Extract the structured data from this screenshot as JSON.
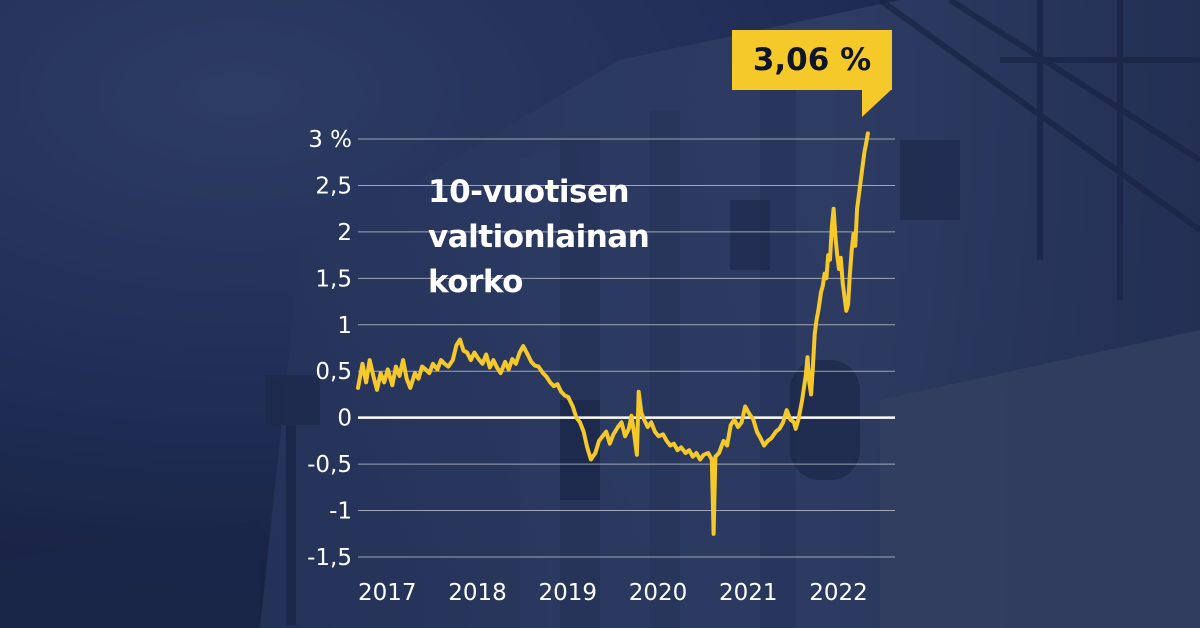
{
  "chart_data": {
    "type": "line",
    "title": "10-vuotisen valtionlainan korko",
    "title_lines": [
      "10-vuotisen",
      "valtionlainan",
      "korko"
    ],
    "annotation": "3,06 %",
    "ylim": [
      -1.5,
      3
    ],
    "y_ticks": [
      {
        "value": 3,
        "label": "3 %"
      },
      {
        "value": 2.5,
        "label": "2,5"
      },
      {
        "value": 2,
        "label": "2"
      },
      {
        "value": 1.5,
        "label": "1,5"
      },
      {
        "value": 1,
        "label": "1"
      },
      {
        "value": 0.5,
        "label": "0,5"
      },
      {
        "value": 0,
        "label": "0"
      },
      {
        "value": -0.5,
        "label": "-0,5"
      },
      {
        "value": -1,
        "label": "-1"
      },
      {
        "value": -1.5,
        "label": "-1,5"
      }
    ],
    "x_ticks": [
      {
        "value": 2017,
        "label": "2017"
      },
      {
        "value": 2018,
        "label": "2018"
      },
      {
        "value": 2019,
        "label": "2019"
      },
      {
        "value": 2020,
        "label": "2020"
      },
      {
        "value": 2021,
        "label": "2021"
      },
      {
        "value": 2022,
        "label": "2022"
      }
    ],
    "xlim": [
      2017,
      2022.95
    ],
    "grid": true,
    "colors": {
      "line": "#f6c92b",
      "grid": "#ffffff",
      "text": "#ffffff",
      "callout_bg": "#f6c92b",
      "callout_text": "#0e1526",
      "background": "#1c2a4a"
    },
    "series": [
      {
        "points": [
          [
            2017.0,
            0.32
          ],
          [
            2017.05,
            0.58
          ],
          [
            2017.09,
            0.38
          ],
          [
            2017.13,
            0.62
          ],
          [
            2017.17,
            0.45
          ],
          [
            2017.21,
            0.3
          ],
          [
            2017.25,
            0.48
          ],
          [
            2017.29,
            0.38
          ],
          [
            2017.33,
            0.52
          ],
          [
            2017.38,
            0.35
          ],
          [
            2017.42,
            0.55
          ],
          [
            2017.46,
            0.45
          ],
          [
            2017.5,
            0.62
          ],
          [
            2017.54,
            0.42
          ],
          [
            2017.58,
            0.32
          ],
          [
            2017.63,
            0.48
          ],
          [
            2017.67,
            0.42
          ],
          [
            2017.71,
            0.55
          ],
          [
            2017.75,
            0.52
          ],
          [
            2017.79,
            0.48
          ],
          [
            2017.83,
            0.58
          ],
          [
            2017.88,
            0.52
          ],
          [
            2017.92,
            0.62
          ],
          [
            2017.96,
            0.58
          ],
          [
            2018.0,
            0.55
          ],
          [
            2018.05,
            0.62
          ],
          [
            2018.09,
            0.78
          ],
          [
            2018.13,
            0.84
          ],
          [
            2018.17,
            0.72
          ],
          [
            2018.21,
            0.7
          ],
          [
            2018.25,
            0.62
          ],
          [
            2018.29,
            0.7
          ],
          [
            2018.33,
            0.64
          ],
          [
            2018.38,
            0.58
          ],
          [
            2018.42,
            0.68
          ],
          [
            2018.46,
            0.54
          ],
          [
            2018.5,
            0.62
          ],
          [
            2018.54,
            0.54
          ],
          [
            2018.58,
            0.48
          ],
          [
            2018.63,
            0.6
          ],
          [
            2018.67,
            0.52
          ],
          [
            2018.71,
            0.63
          ],
          [
            2018.75,
            0.58
          ],
          [
            2018.79,
            0.7
          ],
          [
            2018.83,
            0.77
          ],
          [
            2018.88,
            0.68
          ],
          [
            2018.92,
            0.6
          ],
          [
            2018.96,
            0.56
          ],
          [
            2019.0,
            0.55
          ],
          [
            2019.05,
            0.48
          ],
          [
            2019.09,
            0.44
          ],
          [
            2019.13,
            0.38
          ],
          [
            2019.17,
            0.34
          ],
          [
            2019.21,
            0.36
          ],
          [
            2019.25,
            0.28
          ],
          [
            2019.29,
            0.24
          ],
          [
            2019.33,
            0.22
          ],
          [
            2019.38,
            0.12
          ],
          [
            2019.42,
            0.0
          ],
          [
            2019.46,
            -0.05
          ],
          [
            2019.5,
            -0.15
          ],
          [
            2019.54,
            -0.32
          ],
          [
            2019.58,
            -0.45
          ],
          [
            2019.63,
            -0.38
          ],
          [
            2019.67,
            -0.25
          ],
          [
            2019.71,
            -0.2
          ],
          [
            2019.75,
            -0.15
          ],
          [
            2019.79,
            -0.28
          ],
          [
            2019.83,
            -0.18
          ],
          [
            2019.88,
            -0.1
          ],
          [
            2019.92,
            -0.05
          ],
          [
            2019.96,
            -0.2
          ],
          [
            2020.0,
            -0.12
          ],
          [
            2020.03,
            0.02
          ],
          [
            2020.06,
            -0.18
          ],
          [
            2020.09,
            -0.4
          ],
          [
            2020.11,
            0.28
          ],
          [
            2020.14,
            0.05
          ],
          [
            2020.17,
            -0.02
          ],
          [
            2020.21,
            -0.1
          ],
          [
            2020.25,
            -0.05
          ],
          [
            2020.29,
            -0.15
          ],
          [
            2020.33,
            -0.2
          ],
          [
            2020.38,
            -0.18
          ],
          [
            2020.42,
            -0.25
          ],
          [
            2020.46,
            -0.3
          ],
          [
            2020.5,
            -0.28
          ],
          [
            2020.54,
            -0.35
          ],
          [
            2020.58,
            -0.32
          ],
          [
            2020.63,
            -0.38
          ],
          [
            2020.67,
            -0.35
          ],
          [
            2020.71,
            -0.42
          ],
          [
            2020.75,
            -0.38
          ],
          [
            2020.79,
            -0.45
          ],
          [
            2020.83,
            -0.4
          ],
          [
            2020.88,
            -0.38
          ],
          [
            2020.92,
            -0.45
          ],
          [
            2020.94,
            -1.25
          ],
          [
            2020.96,
            -0.42
          ],
          [
            2021.0,
            -0.38
          ],
          [
            2021.05,
            -0.25
          ],
          [
            2021.09,
            -0.3
          ],
          [
            2021.13,
            -0.08
          ],
          [
            2021.17,
            -0.02
          ],
          [
            2021.21,
            -0.1
          ],
          [
            2021.25,
            -0.05
          ],
          [
            2021.29,
            0.12
          ],
          [
            2021.33,
            0.05
          ],
          [
            2021.38,
            -0.02
          ],
          [
            2021.42,
            -0.15
          ],
          [
            2021.46,
            -0.22
          ],
          [
            2021.5,
            -0.3
          ],
          [
            2021.54,
            -0.25
          ],
          [
            2021.58,
            -0.22
          ],
          [
            2021.63,
            -0.15
          ],
          [
            2021.67,
            -0.12
          ],
          [
            2021.71,
            -0.05
          ],
          [
            2021.75,
            0.08
          ],
          [
            2021.79,
            -0.02
          ],
          [
            2021.83,
            -0.05
          ],
          [
            2021.85,
            -0.12
          ],
          [
            2021.88,
            -0.02
          ],
          [
            2021.92,
            0.18
          ],
          [
            2021.96,
            0.45
          ],
          [
            2021.98,
            0.65
          ],
          [
            2022.0,
            0.38
          ],
          [
            2022.02,
            0.25
          ],
          [
            2022.04,
            0.55
          ],
          [
            2022.06,
            0.9
          ],
          [
            2022.08,
            1.05
          ],
          [
            2022.1,
            1.15
          ],
          [
            2022.13,
            1.35
          ],
          [
            2022.15,
            1.42
          ],
          [
            2022.17,
            1.55
          ],
          [
            2022.19,
            1.5
          ],
          [
            2022.21,
            1.75
          ],
          [
            2022.23,
            1.7
          ],
          [
            2022.25,
            2.05
          ],
          [
            2022.27,
            2.25
          ],
          [
            2022.29,
            1.95
          ],
          [
            2022.31,
            1.75
          ],
          [
            2022.33,
            1.6
          ],
          [
            2022.35,
            1.72
          ],
          [
            2022.37,
            1.45
          ],
          [
            2022.39,
            1.3
          ],
          [
            2022.41,
            1.15
          ],
          [
            2022.43,
            1.22
          ],
          [
            2022.45,
            1.55
          ],
          [
            2022.47,
            1.8
          ],
          [
            2022.49,
            1.98
          ],
          [
            2022.51,
            1.85
          ],
          [
            2022.53,
            2.25
          ],
          [
            2022.55,
            2.4
          ],
          [
            2022.57,
            2.55
          ],
          [
            2022.59,
            2.7
          ],
          [
            2022.61,
            2.85
          ],
          [
            2022.63,
            2.95
          ],
          [
            2022.65,
            3.06
          ]
        ]
      }
    ]
  }
}
